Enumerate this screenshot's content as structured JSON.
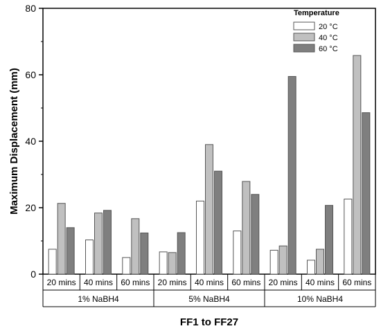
{
  "chart_data": {
    "type": "bar",
    "xlabel": "FF1 to FF27",
    "ylabel": "Maximum Displacement (mm)",
    "ylim": [
      0,
      80
    ],
    "yticks": [
      0,
      20,
      40,
      60,
      80
    ],
    "categories": [
      "20 mins",
      "40 mins",
      "60 mins",
      "20 mins",
      "40 mins",
      "60 mins",
      "20 mins",
      "40 mins",
      "60 mins"
    ],
    "groups": [
      {
        "label": "1% NaBH4",
        "span": 3
      },
      {
        "label": "5% NaBH4",
        "span": 3
      },
      {
        "label": "10% NaBH4",
        "span": 3
      }
    ],
    "legend": {
      "title": "Temperature",
      "position": "top-right"
    },
    "series": [
      {
        "name": "20 °C",
        "color": "#ffffff",
        "values": [
          7.5,
          10.3,
          5.0,
          6.7,
          22.0,
          13.0,
          7.2,
          4.2,
          22.6
        ]
      },
      {
        "name": "40 °C",
        "color": "#c0c0c0",
        "values": [
          21.3,
          18.4,
          16.7,
          6.5,
          39.0,
          27.9,
          8.5,
          7.5,
          65.8
        ]
      },
      {
        "name": "60 °C",
        "color": "#7f7f7f",
        "values": [
          14.0,
          19.2,
          12.4,
          12.5,
          31.0,
          24.0,
          59.5,
          20.7,
          48.6
        ]
      }
    ]
  }
}
